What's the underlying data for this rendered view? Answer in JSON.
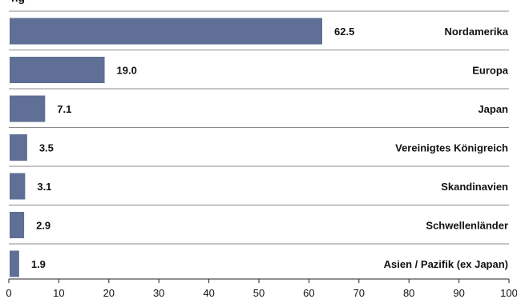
{
  "chart_data": {
    "type": "bar",
    "orientation": "horizontal",
    "title": "ng",
    "categories": [
      "Nordamerika",
      "Europa",
      "Japan",
      "Vereinigtes Königreich",
      "Skandinavien",
      "Schwellenländer",
      "Asien / Pazifik (ex Japan)"
    ],
    "values": [
      62.5,
      19.0,
      7.1,
      3.5,
      3.1,
      2.9,
      1.9
    ],
    "value_labels": [
      "62.5",
      "19.0",
      "7.1",
      "3.5",
      "3.1",
      "2.9",
      "1.9"
    ],
    "xlim": [
      0,
      100
    ],
    "xticks": [
      0,
      10,
      20,
      30,
      40,
      50,
      60,
      70,
      80,
      90,
      100
    ],
    "xtick_labels": [
      "0",
      "10",
      "20",
      "30",
      "40",
      "50",
      "60",
      "70",
      "80",
      "90",
      "100"
    ],
    "xlabel": "",
    "ylabel": "",
    "grid": false,
    "colors": {
      "bar": "#5f6f95",
      "separator": "#8a8a8a",
      "text": "#111111"
    }
  }
}
